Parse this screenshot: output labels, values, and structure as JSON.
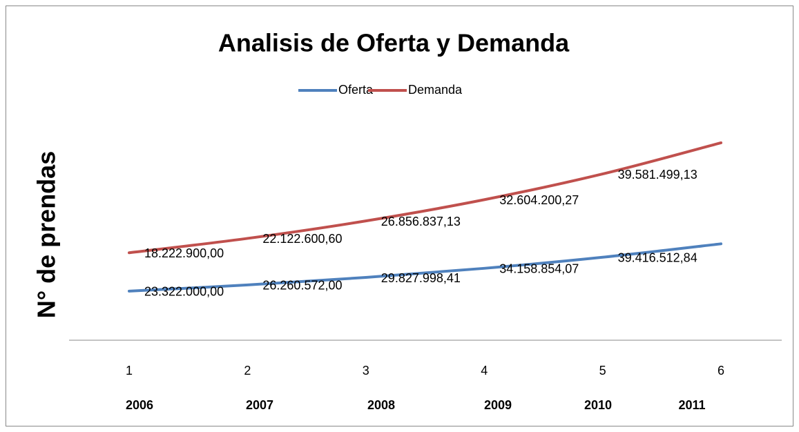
{
  "chart_data": {
    "type": "line",
    "stacked": true,
    "title": "Analisis de Oferta y Demanda",
    "y_label": "N° de prendas",
    "categories": [
      "1",
      "2",
      "3",
      "4",
      "5",
      "6"
    ],
    "years": [
      "2006",
      "2007",
      "2008",
      "2009",
      "2010",
      "2011"
    ],
    "series": [
      {
        "name": "Oferta",
        "color": "#4f81bd",
        "values": [
          23322000.0,
          26260572.0,
          29827998.41,
          34158854.07,
          39416512.84,
          45800000
        ],
        "value_labels": [
          "23.322.000,00",
          "26.260.572,00",
          "29.827.998,41",
          "34.158.854,07",
          "39.416.512,84",
          null
        ]
      },
      {
        "name": "Demanda",
        "color": "#c0504d",
        "values": [
          18222900.0,
          22122600.6,
          26856837.13,
          32604200.27,
          39581499.13,
          48000000
        ],
        "value_labels": [
          "18.222.900,00",
          "22.122.600,60",
          "26.856.837,13",
          "32.604.200,27",
          "39.581.499,13",
          null
        ]
      }
    ],
    "ylim": [
      0,
      100000000
    ],
    "legend": "top"
  }
}
